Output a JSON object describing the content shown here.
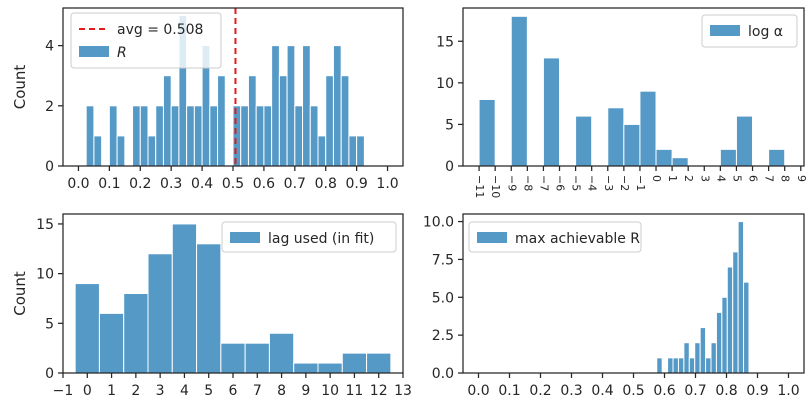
{
  "colors": {
    "bar": "#5599c7",
    "avg_line": "#e41a1c"
  },
  "chart_data": [
    {
      "type": "bar",
      "ylabel": "Count",
      "xlim": [
        -0.05,
        1.05
      ],
      "ylim": [
        0,
        5.25
      ],
      "xticks": [
        0,
        0.1,
        0.2,
        0.3,
        0.4,
        0.5,
        0.6,
        0.7,
        0.8,
        0.9,
        1.0
      ],
      "xtick_labels": [
        "0.0",
        "0.1",
        "0.2",
        "0.3",
        "0.4",
        "0.5",
        "0.6",
        "0.7",
        "0.8",
        "0.9",
        "1.0"
      ],
      "yticks": [
        0,
        2,
        4
      ],
      "ytick_labels": [
        "0",
        "2",
        "4"
      ],
      "bins": {
        "start": 0.025,
        "width": 0.025,
        "values": [
          2,
          1,
          0,
          2,
          1,
          0,
          2,
          2,
          1,
          2,
          3,
          2,
          5,
          2,
          2,
          4,
          2,
          3,
          0,
          2,
          2,
          3,
          2,
          2,
          4,
          3,
          4,
          2,
          4,
          2,
          1,
          3,
          4,
          3,
          1,
          1,
          0
        ]
      },
      "avg_line": {
        "value": 0.508,
        "label": "avg = 0.508"
      },
      "legend": [
        {
          "kind": "line",
          "label": "avg = 0.508"
        },
        {
          "kind": "bar",
          "label": "R"
        }
      ],
      "legend_position": "upper-left"
    },
    {
      "type": "bar",
      "ylabel": "",
      "xlim": [
        -12,
        9.2
      ],
      "ylim": [
        0,
        19
      ],
      "xticks": [
        -11,
        -10,
        -9,
        -8,
        -7,
        -6,
        -5,
        -4,
        -3,
        -2,
        -1,
        0,
        1,
        2,
        3,
        4,
        5,
        6,
        7,
        8,
        9
      ],
      "xtick_labels": [
        "−11",
        "−10",
        "−9",
        "−8",
        "−7",
        "−6",
        "−5",
        "−4",
        "−3",
        "−2",
        "−1",
        "0",
        "1",
        "2",
        "3",
        "4",
        "5",
        "6",
        "7",
        "8",
        "9"
      ],
      "xtick_rotation": 90,
      "yticks": [
        0,
        5,
        10,
        15
      ],
      "ytick_labels": [
        "0",
        "5",
        "10",
        "15"
      ],
      "bins": {
        "start": -11,
        "width": 1,
        "values": [
          8,
          0,
          18,
          0,
          13,
          0,
          6,
          0,
          7,
          5,
          9,
          2,
          1,
          0,
          0,
          2,
          6,
          0,
          2
        ]
      },
      "legend": [
        {
          "kind": "bar",
          "label": "log α"
        }
      ],
      "legend_position": "upper-right"
    },
    {
      "type": "bar",
      "ylabel": "Count",
      "xlim": [
        -1,
        13
      ],
      "ylim": [
        0,
        16
      ],
      "xticks": [
        -1,
        0,
        1,
        2,
        3,
        4,
        5,
        6,
        7,
        8,
        9,
        10,
        11,
        12,
        13
      ],
      "xtick_labels": [
        "−1",
        "0",
        "1",
        "2",
        "3",
        "4",
        "5",
        "6",
        "7",
        "8",
        "9",
        "10",
        "11",
        "12",
        "13"
      ],
      "yticks": [
        0,
        5,
        10,
        15
      ],
      "ytick_labels": [
        "0",
        "5",
        "10",
        "15"
      ],
      "bins": {
        "start": -0.5,
        "width": 1,
        "values": [
          9,
          6,
          8,
          12,
          15,
          13,
          3,
          3,
          4,
          1,
          1,
          2,
          2
        ]
      },
      "legend": [
        {
          "kind": "bar",
          "label": "lag used (in fit)"
        }
      ],
      "legend_position": "upper-right"
    },
    {
      "type": "bar",
      "ylabel": "",
      "xlim": [
        -0.05,
        1.05
      ],
      "ylim": [
        0,
        10.5
      ],
      "xticks": [
        0,
        0.1,
        0.2,
        0.3,
        0.4,
        0.5,
        0.6,
        0.7,
        0.8,
        0.9,
        1.0
      ],
      "xtick_labels": [
        "0.0",
        "0.1",
        "0.2",
        "0.3",
        "0.4",
        "0.5",
        "0.6",
        "0.7",
        "0.8",
        "0.9",
        "1.0"
      ],
      "yticks": [
        0,
        2.5,
        5,
        7.5,
        10
      ],
      "ytick_labels": [
        "0.0",
        "2.5",
        "5.0",
        "7.5",
        "10.0"
      ],
      "bins": {
        "start": 0.575,
        "width": 0.0175,
        "values": [
          1,
          0,
          1,
          1,
          1,
          2,
          1,
          2,
          3,
          1,
          2,
          4,
          5,
          7,
          8,
          10,
          6
        ]
      },
      "legend": [
        {
          "kind": "bar",
          "label": "max achievable R"
        }
      ],
      "legend_position": "upper-left"
    }
  ]
}
